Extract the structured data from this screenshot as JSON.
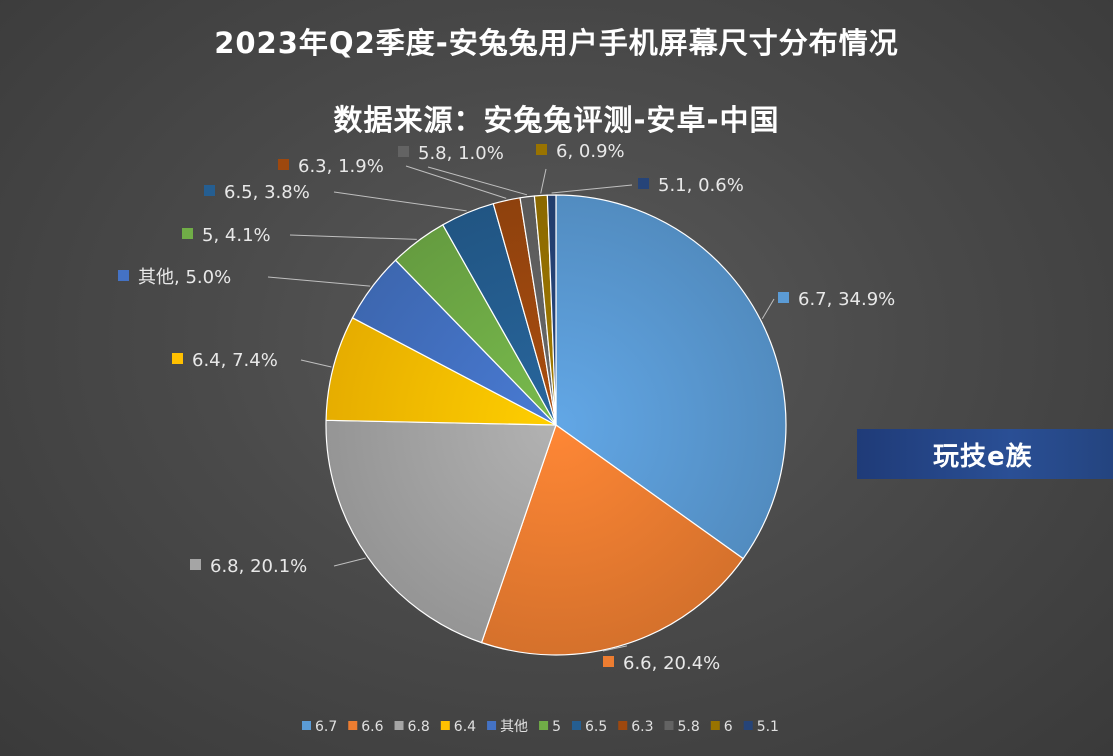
{
  "chart_data": {
    "type": "pie",
    "title": "2023年Q2季度-安兔兔用户手机屏幕尺寸分布情况",
    "subtitle": "数据来源：安兔兔评测-安卓-中国",
    "slices": [
      {
        "name": "6.7",
        "value": 34.9,
        "label": "6.7, 34.9%",
        "color": "#5b9bd5"
      },
      {
        "name": "6.6",
        "value": 20.4,
        "label": "6.6, 20.4%",
        "color": "#ed7d31"
      },
      {
        "name": "6.8",
        "value": 20.1,
        "label": "6.8, 20.1%",
        "color": "#a5a5a5"
      },
      {
        "name": "6.4",
        "value": 7.4,
        "label": "6.4, 7.4%",
        "color": "#ffc000"
      },
      {
        "name": "其他",
        "value": 5.0,
        "label": "其他, 5.0%",
        "color": "#4472c4"
      },
      {
        "name": "5",
        "value": 4.1,
        "label": "5, 4.1%",
        "color": "#70ad47"
      },
      {
        "name": "6.5",
        "value": 3.8,
        "label": "6.5, 3.8%",
        "color": "#255e91"
      },
      {
        "name": "6.3",
        "value": 1.9,
        "label": "6.3, 1.9%",
        "color": "#9e480e"
      },
      {
        "name": "5.8",
        "value": 1.0,
        "label": "5.8, 1.0%",
        "color": "#636363"
      },
      {
        "name": "6",
        "value": 0.9,
        "label": "6, 0.9%",
        "color": "#997300"
      },
      {
        "name": "5.1",
        "value": 0.6,
        "label": "5.1, 0.6%",
        "color": "#264478"
      }
    ],
    "legend_position": "bottom"
  },
  "watermark": "玩技e族"
}
